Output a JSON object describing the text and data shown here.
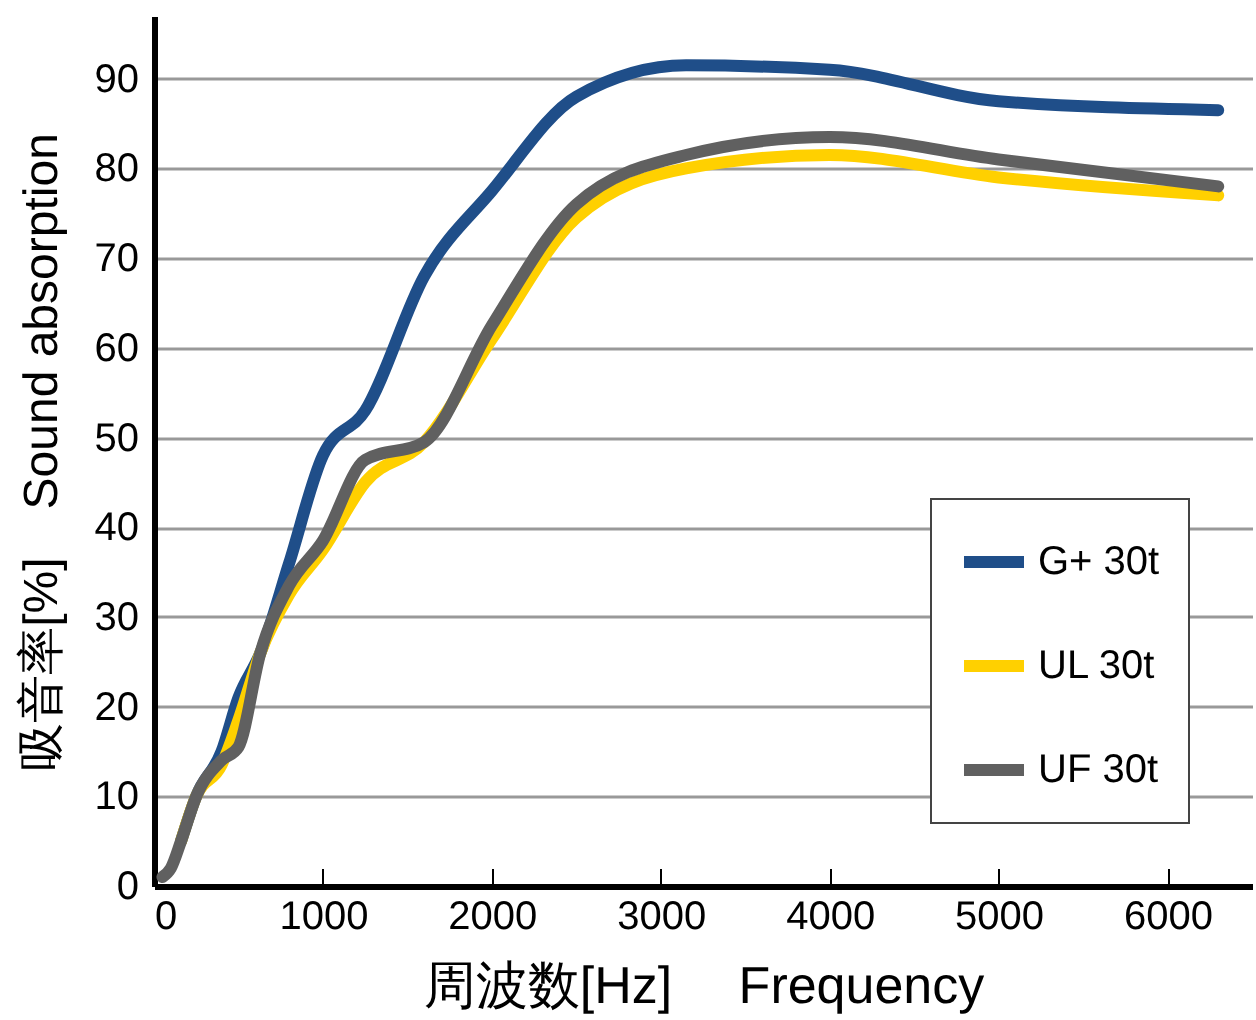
{
  "chart_data": {
    "type": "line",
    "xlabel": "周波数[Hz]　 Frequency",
    "ylabel": "吸音率[%]　Sound absorption",
    "x": [
      50,
      100,
      160,
      250,
      400,
      500,
      630,
      800,
      1000,
      1250,
      1600,
      2000,
      2500,
      3150,
      4000,
      5000,
      6300
    ],
    "series": [
      {
        "name": "G+ 30t",
        "color": "#1f4e89",
        "values": [
          null,
          null,
          5,
          10,
          15,
          21,
          26,
          36,
          48,
          53,
          68,
          77.5,
          88,
          91.5,
          91,
          87.5,
          86.5
        ]
      },
      {
        "name": "UL 30t",
        "color": "#ffd000",
        "values": [
          null,
          null,
          5,
          10,
          13.5,
          18.5,
          26,
          32.5,
          37.5,
          45,
          49.5,
          61,
          74.5,
          80,
          81.5,
          79,
          77
        ]
      },
      {
        "name": "UF 30t",
        "color": "#606060",
        "values": [
          1,
          2,
          5,
          10,
          14,
          15.5,
          26,
          33.5,
          38.5,
          47.5,
          49.5,
          62.5,
          76,
          81.5,
          83.5,
          81,
          78
        ]
      }
    ],
    "xlim": [
      0,
      6500
    ],
    "ylim": [
      0,
      97
    ],
    "xticks": [
      0,
      1000,
      2000,
      3000,
      4000,
      5000,
      6000
    ],
    "yticks": [
      0,
      10,
      20,
      30,
      40,
      50,
      60,
      70,
      80,
      90
    ],
    "grid": "y",
    "legend": "bottom right",
    "line_style": "solid",
    "marker": "none"
  }
}
